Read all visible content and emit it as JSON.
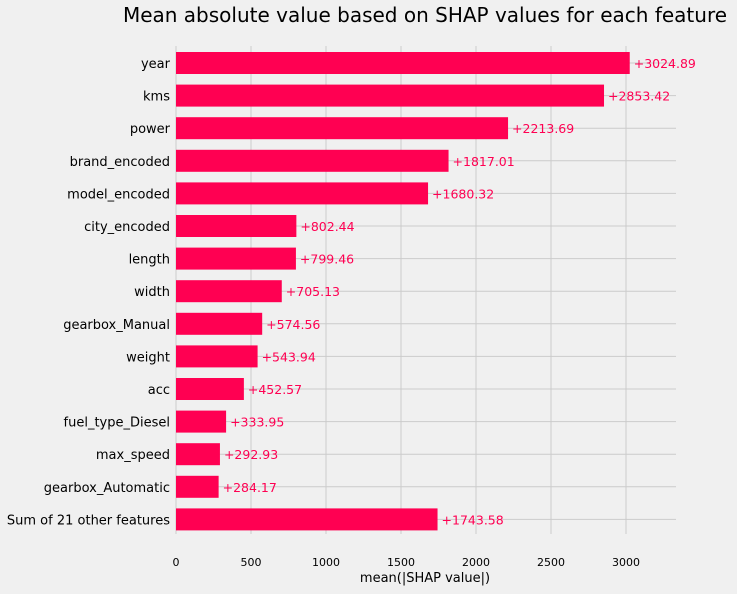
{
  "chart_data": {
    "type": "bar",
    "orientation": "horizontal",
    "title": "Mean absolute value based on SHAP values for each feature",
    "xlabel": "mean(|SHAP value|)",
    "ylabel": "",
    "xlim": [
      0,
      3300
    ],
    "x_ticks": [
      0,
      500,
      1000,
      1500,
      2000,
      2500,
      3000
    ],
    "grid": true,
    "categories": [
      "year",
      "kms",
      "power",
      "brand_encoded",
      "model_encoded",
      "city_encoded",
      "length",
      "width",
      "gearbox_Manual",
      "weight",
      "acc",
      "fuel_type_Diesel",
      "max_speed",
      "gearbox_Automatic",
      "Sum of 21 other features"
    ],
    "values": [
      3024.89,
      2853.42,
      2213.69,
      1817.01,
      1680.32,
      802.44,
      799.46,
      705.13,
      574.56,
      543.94,
      452.57,
      333.95,
      292.93,
      284.17,
      1743.58
    ],
    "data_labels": [
      "+3024.89",
      "+2853.42",
      "+2213.69",
      "+1817.01",
      "+1680.32",
      "+802.44",
      "+799.46",
      "+705.13",
      "+574.56",
      "+543.94",
      "+452.57",
      "+333.95",
      "+292.93",
      "+284.17",
      "+1743.58"
    ],
    "colors": {
      "bar": "#ff0052",
      "label": "#ff0052",
      "grid": "#cbcbcb",
      "background": "#f0f0f0",
      "text": "#000000"
    }
  }
}
